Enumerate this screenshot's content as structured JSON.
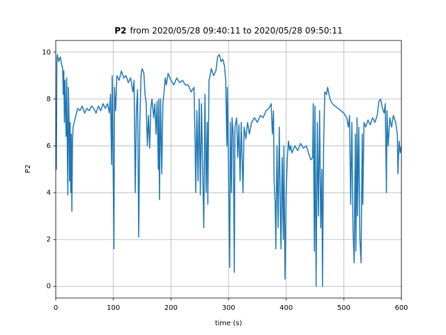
{
  "chart_data": {
    "type": "line",
    "title_parts": [
      "P2",
      "from 2020/05/28 09:40:11 to 2020/05/28 09:50:11"
    ],
    "xlabel": "time (s)",
    "ylabel": "P2",
    "color": "#1f77b4",
    "grid": true,
    "xlim": [
      0,
      600
    ],
    "xticks": [
      0,
      100,
      200,
      300,
      400,
      500,
      600
    ],
    "ylim": [
      -0.5,
      10.5
    ],
    "yticks": [
      0,
      2,
      4,
      6,
      8,
      10
    ],
    "x": [
      0,
      1,
      2,
      3,
      5,
      8,
      10,
      12,
      13,
      14,
      15,
      16,
      17,
      18,
      19,
      20,
      21,
      22,
      23,
      24,
      25,
      26,
      27,
      28,
      29,
      30,
      32,
      35,
      38,
      42,
      46,
      50,
      54,
      58,
      62,
      66,
      70,
      74,
      78,
      82,
      86,
      90,
      93,
      95,
      97,
      98,
      99,
      101,
      102,
      104,
      106,
      110,
      114,
      118,
      122,
      126,
      130,
      134,
      136,
      138,
      140,
      142,
      144,
      146,
      148,
      150,
      153,
      155,
      157,
      159,
      161,
      163,
      165,
      167,
      170,
      172,
      174,
      176,
      178,
      179,
      180,
      182,
      184,
      186,
      188,
      190,
      192,
      195,
      200,
      205,
      210,
      215,
      220,
      225,
      230,
      235,
      240,
      242,
      243,
      245,
      247,
      249,
      251,
      253,
      255,
      257,
      259,
      261,
      263,
      264,
      266,
      268,
      270,
      274,
      278,
      281,
      284,
      287,
      290,
      293,
      295,
      297,
      298,
      300,
      302,
      303,
      305,
      306,
      308,
      310,
      311,
      314,
      316,
      318,
      320,
      322,
      325,
      327,
      330,
      333,
      336,
      340,
      345,
      350,
      355,
      360,
      365,
      370,
      374,
      376,
      378,
      379,
      381,
      382,
      384,
      386,
      388,
      390,
      391,
      393,
      395,
      396,
      398,
      400,
      402,
      404,
      406,
      408,
      410,
      415,
      420,
      425,
      430,
      435,
      440,
      443,
      446,
      447,
      449,
      450,
      452,
      454,
      456,
      458,
      460,
      462,
      463,
      465,
      467,
      470,
      472,
      476,
      480,
      485,
      490,
      495,
      500,
      505,
      508,
      510,
      512,
      514,
      516,
      518,
      520,
      521,
      523,
      524,
      526,
      528,
      530,
      532,
      533,
      535,
      538,
      542,
      546,
      550,
      554,
      558,
      561,
      564,
      567,
      570,
      572,
      574,
      575,
      577,
      580,
      583,
      586,
      590,
      593,
      594,
      596,
      598,
      600
    ],
    "values": [
      7,
      5,
      9.7,
      9.9,
      9.6,
      9.8,
      9.5,
      9.3,
      8.2,
      9.2,
      7.0,
      8.8,
      7.5,
      6.4,
      8.9,
      6.1,
      3.9,
      8.5,
      7.3,
      4.5,
      7.0,
      4.0,
      6.5,
      3.2,
      6.0,
      6.8,
      7.0,
      7.3,
      7.6,
      7.5,
      7.7,
      7.4,
      7.6,
      7.5,
      7.7,
      7.6,
      7.4,
      7.7,
      7.5,
      7.8,
      7.6,
      7.8,
      7.4,
      8.2,
      5.2,
      9.0,
      6.5,
      1.6,
      8.5,
      7.5,
      9.0,
      8.8,
      9.2,
      8.9,
      9.0,
      8.7,
      8.9,
      8.3,
      8.8,
      4.0,
      7.5,
      8.4,
      2.1,
      7.0,
      9.0,
      9.3,
      9.1,
      8.2,
      7.8,
      6.0,
      7.3,
      5.9,
      7.6,
      8.0,
      7.2,
      7.8,
      6.5,
      7.9,
      5.0,
      8.0,
      3.7,
      8.0,
      4.8,
      7.8,
      8.3,
      8.9,
      8.6,
      9.1,
      8.8,
      8.6,
      8.9,
      8.7,
      8.8,
      8.6,
      8.6,
      8.3,
      8.5,
      6.0,
      4.0,
      7.5,
      4.5,
      8.0,
      3.9,
      7.8,
      5.0,
      2.5,
      8.2,
      4.0,
      7.0,
      3.5,
      8.8,
      9.0,
      9.3,
      9.0,
      9.2,
      9.8,
      9.9,
      9.6,
      9.7,
      9.4,
      8.8,
      6.0,
      8.5,
      4.5,
      0.8,
      7.0,
      4.0,
      7.2,
      6.5,
      0.6,
      6.8,
      7.2,
      5.5,
      6.9,
      4.5,
      7.0,
      4.0,
      6.8,
      6.3,
      7.0,
      6.5,
      7.0,
      7.2,
      7.0,
      7.3,
      7.2,
      7.5,
      7.6,
      7.8,
      6.5,
      7.5,
      4.5,
      3.5,
      1.6,
      6.0,
      2.5,
      6.8,
      3.0,
      1.6,
      5.5,
      2.0,
      6.0,
      0.3,
      4.0,
      5.5,
      6.2,
      5.8,
      6.0,
      5.7,
      6.0,
      5.8,
      6.1,
      5.9,
      6.0,
      5.6,
      5.4,
      5.5,
      7.8,
      1.5,
      7.7,
      0.0,
      7.0,
      3.0,
      7.5,
      2.5,
      5.0,
      0.0,
      6.0,
      8.3,
      8.2,
      8.5,
      8.0,
      7.8,
      7.7,
      7.6,
      7.5,
      7.4,
      7.2,
      6.8,
      7.3,
      3.5,
      7.0,
      2.5,
      1.0,
      6.5,
      1.5,
      7.2,
      3.0,
      6.8,
      2.0,
      1.0,
      6.5,
      3.5,
      7.0,
      6.8,
      7.1,
      6.9,
      7.2,
      7.0,
      7.3,
      7.9,
      8.0,
      7.6,
      7.4,
      7.8,
      4.0,
      7.5,
      6.0,
      7.2,
      6.8,
      7.3,
      7.0,
      6.5,
      4.8,
      6.2,
      5.7,
      6.0
    ]
  }
}
